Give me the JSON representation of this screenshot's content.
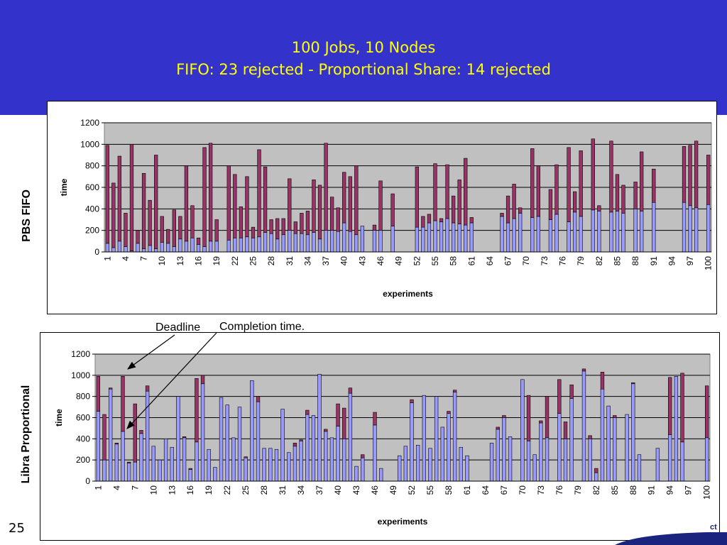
{
  "slide": {
    "title_line1": "100 Jobs, 10 Nodes",
    "title_line2": "FIFO: 23 rejected - Proportional Share: 14 rejected",
    "label_top": "PBS  FIFO",
    "label_bottom": "Libra  Proportional",
    "annotation_deadline": "Deadline",
    "annotation_completion": "Completion time.",
    "slide_number": "25",
    "corner_text": "ct"
  },
  "colors": {
    "banner": "#3333cc",
    "title": "#ffff00",
    "plot_bg": "#c0c0c0",
    "completion_bar": "#9999ff",
    "deadline_bar": "#993366"
  },
  "chart_data": [
    {
      "type": "bar",
      "stacked": true,
      "xlabel": "experiments",
      "ylabel": "time",
      "ylim": [
        0,
        1200
      ],
      "yticks": [
        0,
        200,
        400,
        600,
        800,
        1000,
        1200
      ],
      "x": [
        1,
        2,
        3,
        4,
        5,
        6,
        7,
        8,
        9,
        10,
        11,
        12,
        13,
        14,
        15,
        16,
        17,
        18,
        19,
        20,
        21,
        22,
        23,
        24,
        25,
        26,
        27,
        28,
        29,
        30,
        31,
        32,
        33,
        34,
        35,
        36,
        37,
        38,
        39,
        40,
        41,
        42,
        43,
        44,
        45,
        46,
        47,
        48,
        49,
        50,
        51,
        52,
        53,
        54,
        55,
        56,
        57,
        58,
        59,
        60,
        61,
        62,
        63,
        64,
        65,
        66,
        67,
        68,
        69,
        70,
        71,
        72,
        73,
        74,
        75,
        76,
        77,
        78,
        79,
        80,
        81,
        82,
        83,
        84,
        85,
        86,
        87,
        88,
        89,
        90,
        91,
        92,
        93,
        94,
        95,
        96,
        97,
        98,
        99,
        100
      ],
      "xticks": [
        "1",
        "4",
        "7",
        "10",
        "13",
        "16",
        "19",
        "22",
        "25",
        "28",
        "31",
        "34",
        "37",
        "40",
        "43",
        "46",
        "49",
        "52",
        "55",
        "58",
        "61",
        "64",
        "67",
        "70",
        "73",
        "76",
        "79",
        "82",
        "85",
        "88",
        "91",
        "94",
        "97",
        "100"
      ],
      "grid": true,
      "series": [
        {
          "values": [
            80,
            40,
            100,
            50,
            10,
            80,
            30,
            60,
            30,
            90,
            80,
            50,
            120,
            100,
            130,
            70,
            50,
            100,
            100,
            0,
            110,
            130,
            130,
            140,
            130,
            140,
            180,
            170,
            120,
            160,
            200,
            170,
            170,
            160,
            180,
            120,
            200,
            200,
            190,
            270,
            190,
            160,
            240,
            0,
            200,
            200,
            0,
            240,
            0,
            0,
            0,
            230,
            230,
            270,
            290,
            280,
            310,
            270,
            260,
            250,
            270,
            0,
            0,
            0,
            0,
            330,
            270,
            310,
            360,
            0,
            320,
            330,
            0,
            300,
            350,
            0,
            280,
            370,
            330,
            0,
            390,
            380,
            0,
            370,
            380,
            360,
            0,
            400,
            380,
            0,
            460,
            0,
            0,
            0,
            0,
            460,
            430,
            410,
            0,
            440
          ]
        },
        {
          "values": [
            910,
            600,
            790,
            310,
            990,
            120,
            700,
            420,
            870,
            240,
            130,
            340,
            210,
            700,
            300,
            60,
            920,
            910,
            200,
            0,
            690,
            590,
            290,
            560,
            100,
            810,
            610,
            130,
            190,
            150,
            480,
            110,
            190,
            220,
            490,
            500,
            810,
            310,
            220,
            470,
            510,
            640,
            0,
            0,
            50,
            460,
            0,
            300,
            0,
            0,
            0,
            560,
            100,
            80,
            530,
            30,
            500,
            250,
            410,
            620,
            50,
            0,
            0,
            0,
            0,
            30,
            250,
            320,
            50,
            0,
            640,
            470,
            0,
            280,
            460,
            0,
            690,
            190,
            610,
            0,
            660,
            50,
            0,
            660,
            340,
            260,
            0,
            250,
            550,
            0,
            310,
            0,
            0,
            0,
            0,
            520,
            560,
            620,
            0,
            460
          ]
        }
      ]
    },
    {
      "type": "bar",
      "stacked": true,
      "xlabel": "experiments",
      "ylabel": "time",
      "ylim": [
        0,
        1200
      ],
      "yticks": [
        0,
        200,
        400,
        600,
        800,
        1000,
        1200
      ],
      "x": [
        1,
        2,
        3,
        4,
        5,
        6,
        7,
        8,
        9,
        10,
        11,
        12,
        13,
        14,
        15,
        16,
        17,
        18,
        19,
        20,
        21,
        22,
        23,
        24,
        25,
        26,
        27,
        28,
        29,
        30,
        31,
        32,
        33,
        34,
        35,
        36,
        37,
        38,
        39,
        40,
        41,
        42,
        43,
        44,
        45,
        46,
        47,
        48,
        49,
        50,
        51,
        52,
        53,
        54,
        55,
        56,
        57,
        58,
        59,
        60,
        61,
        62,
        63,
        64,
        65,
        66,
        67,
        68,
        69,
        70,
        71,
        72,
        73,
        74,
        75,
        76,
        77,
        78,
        79,
        80,
        81,
        82,
        83,
        84,
        85,
        86,
        87,
        88,
        89,
        90,
        91,
        92,
        93,
        94,
        95,
        96,
        97,
        98,
        99,
        100
      ],
      "xticks": [
        "1",
        "4",
        "7",
        "10",
        "13",
        "16",
        "19",
        "22",
        "25",
        "28",
        "31",
        "34",
        "37",
        "40",
        "43",
        "46",
        "49",
        "52",
        "55",
        "58",
        "61",
        "64",
        "67",
        "70",
        "73",
        "76",
        "79",
        "82",
        "85",
        "88",
        "91",
        "94",
        "97",
        "100"
      ],
      "grid": true,
      "series": [
        {
          "values": [
            660,
            200,
            870,
            350,
            470,
            170,
            180,
            450,
            850,
            330,
            200,
            400,
            320,
            800,
            410,
            110,
            370,
            920,
            300,
            130,
            790,
            720,
            410,
            700,
            220,
            950,
            750,
            310,
            310,
            300,
            680,
            270,
            330,
            380,
            630,
            620,
            1010,
            470,
            410,
            520,
            400,
            830,
            140,
            220,
            0,
            530,
            120,
            0,
            0,
            240,
            330,
            740,
            340,
            810,
            310,
            800,
            510,
            640,
            840,
            320,
            240,
            0,
            0,
            0,
            360,
            490,
            600,
            420,
            0,
            960,
            380,
            250,
            550,
            410,
            0,
            640,
            400,
            780,
            0,
            1040,
            400,
            80,
            870,
            710,
            600,
            0,
            630,
            920,
            250,
            0,
            0,
            310,
            0,
            440,
            990,
            370,
            0,
            0,
            0,
            410
          ]
        },
        {
          "values": [
            330,
            430,
            10,
            10,
            520,
            10,
            550,
            30,
            50,
            0,
            0,
            0,
            0,
            0,
            10,
            10,
            600,
            80,
            0,
            0,
            0,
            0,
            0,
            0,
            10,
            0,
            50,
            0,
            0,
            0,
            0,
            0,
            30,
            10,
            40,
            0,
            0,
            20,
            0,
            210,
            290,
            50,
            0,
            30,
            0,
            120,
            0,
            0,
            0,
            0,
            0,
            30,
            0,
            0,
            0,
            0,
            0,
            20,
            20,
            0,
            0,
            0,
            0,
            0,
            0,
            20,
            20,
            0,
            0,
            0,
            430,
            0,
            20,
            390,
            0,
            320,
            160,
            130,
            0,
            20,
            30,
            40,
            160,
            0,
            20,
            0,
            0,
            10,
            0,
            0,
            0,
            0,
            0,
            540,
            0,
            650,
            0,
            0,
            0,
            490
          ]
        }
      ]
    }
  ]
}
